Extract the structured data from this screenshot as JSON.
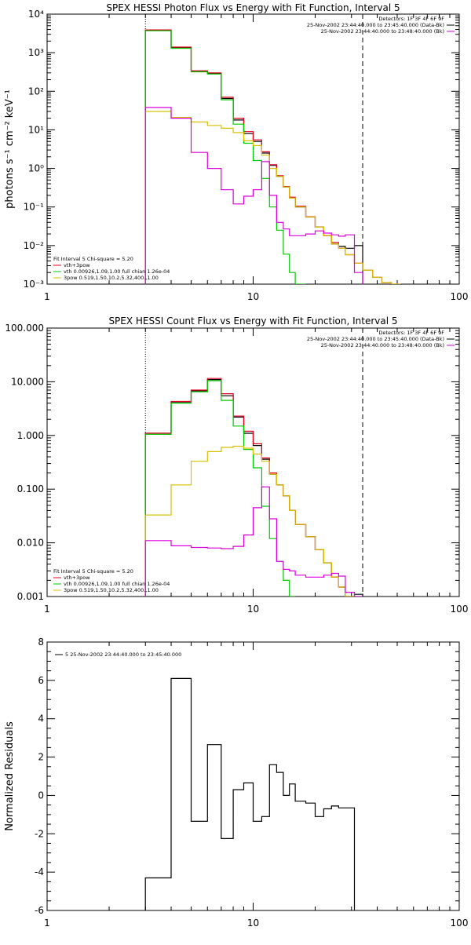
{
  "colors": {
    "data_black": "#000000",
    "total_red": "#e4001c",
    "thermal_green": "#00c800",
    "powerlaw_yellow": "#d8c000",
    "background_magenta": "#dc00dc",
    "axes": "#000000"
  },
  "chart_data": [
    {
      "type": "line",
      "title": "SPEX HESSI Photon Flux vs Energy with Fit Function, Interval 5",
      "xlabel": "",
      "ylabel": "photons s⁻¹ cm⁻² keV⁻¹",
      "xscale": "log",
      "yscale": "log",
      "xlim": [
        1,
        100
      ],
      "ylim": [
        0.001,
        10000
      ],
      "x_ticks": [
        1,
        10,
        100
      ],
      "x_tick_labels": [
        "1",
        "10",
        "100"
      ],
      "y_ticks": [
        0.001,
        0.01,
        0.1,
        1,
        10,
        100,
        1000,
        10000
      ],
      "y_tick_labels": [
        "10⁻³",
        "10⁻²",
        "10⁻¹",
        "10⁰",
        "10¹",
        "10²",
        "10³",
        "10⁴"
      ],
      "vlines": [
        {
          "x": 3.0,
          "style": "dotted"
        },
        {
          "x": 34.0,
          "style": "dashed"
        }
      ],
      "legend_topright": [
        {
          "text": "Detectors: 1F 3F 4F 6F 9F",
          "color": ""
        },
        {
          "text": "25-Nov-2002 23:44:40.000 to 23:45:40.000 (Data-Bk)",
          "color": "#000000"
        },
        {
          "text": "25-Nov-2002 23:44:40.000 to 23:48:40.000 (Bk)",
          "color": "#dc00dc"
        }
      ],
      "legend_bottomleft": [
        {
          "text": "Fit Interval 5  Chi-square = 5.20",
          "color": ""
        },
        {
          "text": "vth+3pow",
          "color": "#e4001c"
        },
        {
          "text": "vth 0.00926,1.09,1.00  full chian 1.26e-04",
          "color": "#00c800"
        },
        {
          "text": "3pow 0.519,1.50,10.2,5.32,400.,1.00",
          "color": "#d8c000"
        }
      ],
      "bin_edges": [
        3,
        4,
        5,
        6,
        7,
        8,
        9,
        10,
        11,
        12,
        13,
        14,
        15,
        16,
        18,
        20,
        22,
        24,
        26,
        28,
        31,
        34,
        38,
        42,
        47,
        52
      ],
      "series": [
        {
          "name": "data",
          "color": "#000000",
          "values": [
            3800,
            1350,
            330,
            290,
            65,
            18,
            8.0,
            5.0,
            2.5,
            1.2,
            0.62,
            0.33,
            0.17,
            0.1,
            0.055,
            0.03,
            0.018,
            0.011,
            0.0095,
            0.0085,
            0.01
          ]
        },
        {
          "name": "vth+3pow",
          "color": "#e4001c",
          "values": [
            3900,
            1400,
            340,
            300,
            70,
            20,
            9.0,
            5.5,
            2.7,
            1.25,
            0.65,
            0.34,
            0.18,
            0.105,
            0.056,
            0.03,
            0.018,
            0.012,
            0.0085,
            0.0058,
            0.0035,
            0.0023,
            0.0015,
            0.0011,
            0.001
          ]
        },
        {
          "name": "vth",
          "color": "#00c800",
          "values": [
            3700,
            1300,
            320,
            280,
            60,
            14,
            4.5,
            1.6,
            0.55,
            0.1,
            0.025,
            0.006,
            0.002,
            0.001
          ]
        },
        {
          "name": "3pow",
          "color": "#d8c000",
          "values": [
            30,
            21,
            16,
            13,
            11,
            8.5,
            5.2,
            3.9,
            2.2,
            1.0,
            0.62,
            0.33,
            0.17,
            0.1,
            0.055,
            0.03,
            0.018,
            0.011,
            0.0085,
            0.0058,
            0.0035,
            0.0023,
            0.0015,
            0.0011,
            0.001
          ]
        },
        {
          "name": "background",
          "color": "#dc00dc",
          "values": [
            38,
            20,
            2.6,
            1.0,
            0.28,
            0.12,
            0.19,
            0.28,
            1.5,
            0.2,
            0.04,
            0.027,
            0.018,
            0.018,
            0.02,
            0.024,
            0.021,
            0.019,
            0.0175,
            0.019,
            0.002
          ]
        }
      ]
    },
    {
      "type": "line",
      "title": "SPEX HESSI Count Flux vs Energy with Fit Function, Interval 5",
      "xlabel": "",
      "ylabel": "",
      "xscale": "log",
      "yscale": "log",
      "xlim": [
        1,
        100
      ],
      "ylim": [
        0.001,
        100
      ],
      "x_ticks": [
        1,
        10,
        100
      ],
      "x_tick_labels": [
        "1",
        "10",
        "100"
      ],
      "y_ticks": [
        0.001,
        0.01,
        0.1,
        1,
        10,
        100
      ],
      "y_tick_labels": [
        "0.001",
        "0.010",
        "0.100",
        "1.000",
        "10.000",
        "100.000"
      ],
      "vlines": [
        {
          "x": 3.0,
          "style": "dotted"
        },
        {
          "x": 34.0,
          "style": "dashed"
        }
      ],
      "legend_topright": [
        {
          "text": "Detectors: 1F 3F 4F 6F 9F",
          "color": ""
        },
        {
          "text": "25-Nov-2002 23:44:40.000 to 23:45:40.000 (Data-Bk)",
          "color": "#000000"
        },
        {
          "text": "25-Nov-2002 23:44:40.000 to 23:48:40.000 (Bk)",
          "color": "#dc00dc"
        }
      ],
      "legend_bottomleft": [
        {
          "text": "Fit Interval 5  Chi-square = 5.20",
          "color": ""
        },
        {
          "text": "vth+3pow",
          "color": "#e4001c"
        },
        {
          "text": "vth 0.00926,1.09,1.00  full chian 1.26e-04",
          "color": "#00c800"
        },
        {
          "text": "3pow 0.519,1.50,10.2,5.32,400.,1.00",
          "color": "#d8c000"
        }
      ],
      "bin_edges": [
        3,
        4,
        5,
        6,
        7,
        8,
        9,
        10,
        11,
        12,
        13,
        14,
        15,
        16,
        18,
        20,
        22,
        24,
        26,
        28,
        31,
        34,
        38
      ],
      "series": [
        {
          "name": "data",
          "color": "#000000",
          "values": [
            1.1,
            4.2,
            6.8,
            11.0,
            5.5,
            2.2,
            1.1,
            0.65,
            0.36,
            0.19,
            0.12,
            0.075,
            0.04,
            0.022,
            0.013,
            0.0075,
            0.0042,
            0.0023,
            0.0015,
            0.001,
            0.0011
          ]
        },
        {
          "name": "vth+3pow",
          "color": "#e4001c",
          "values": [
            1.1,
            4.3,
            7.0,
            11.5,
            6.0,
            2.3,
            1.2,
            0.7,
            0.38,
            0.2,
            0.12,
            0.075,
            0.04,
            0.022,
            0.013,
            0.0075,
            0.0042,
            0.0023,
            0.0015,
            0.001,
            0.0008,
            0.0005
          ]
        },
        {
          "name": "vth",
          "color": "#00c800",
          "values": [
            1.05,
            4.0,
            6.5,
            10.5,
            4.5,
            1.5,
            0.55,
            0.25,
            0.048,
            0.012,
            0.0045,
            0.002,
            0.001
          ]
        },
        {
          "name": "3pow",
          "color": "#d8c000",
          "values": [
            0.033,
            0.12,
            0.33,
            0.5,
            0.6,
            0.63,
            0.58,
            0.45,
            0.33,
            0.19,
            0.12,
            0.075,
            0.04,
            0.022,
            0.013,
            0.0075,
            0.0042,
            0.0023,
            0.0015,
            0.001,
            0.0008,
            0.0005
          ]
        },
        {
          "name": "background",
          "color": "#dc00dc",
          "values": [
            0.011,
            0.0088,
            0.0082,
            0.008,
            0.0078,
            0.0086,
            0.014,
            0.045,
            0.11,
            0.028,
            0.0045,
            0.0032,
            0.003,
            0.0025,
            0.0023,
            0.0023,
            0.0025,
            0.0027,
            0.0024,
            0.0012,
            0.001
          ]
        }
      ]
    },
    {
      "type": "line",
      "title": "",
      "xlabel": "",
      "ylabel": "Normalized Residuals",
      "xscale": "log",
      "yscale": "linear",
      "xlim": [
        1,
        100
      ],
      "ylim": [
        -6,
        8
      ],
      "x_ticks": [
        1,
        10,
        100
      ],
      "x_tick_labels": [
        "1",
        "10",
        "100"
      ],
      "y_ticks": [
        -6,
        -4,
        -2,
        0,
        2,
        4,
        6,
        8
      ],
      "y_tick_labels": [
        "-6",
        "-4",
        "-2",
        "0",
        "2",
        "4",
        "6",
        "8"
      ],
      "legend_topleft": [
        {
          "text": "5  25-Nov-2002 23:44:40.000 to 23:45:40.000",
          "color": "#000000"
        }
      ],
      "bin_edges": [
        3,
        4,
        5,
        6,
        7,
        8,
        9,
        10,
        11,
        12,
        13,
        14,
        15,
        16,
        18,
        20,
        22,
        24,
        26,
        28,
        31,
        34
      ],
      "series": [
        {
          "name": "5  25-Nov-2002 23:44:40.000 to 23:45:40.000",
          "color": "#000000",
          "values": [
            -4.3,
            6.1,
            -1.35,
            2.65,
            -2.25,
            0.3,
            0.65,
            -1.35,
            -1.1,
            1.6,
            1.2,
            0.0,
            0.6,
            -0.3,
            -0.4,
            -1.1,
            -0.7,
            -0.55,
            -0.65,
            -0.65
          ]
        }
      ]
    }
  ]
}
